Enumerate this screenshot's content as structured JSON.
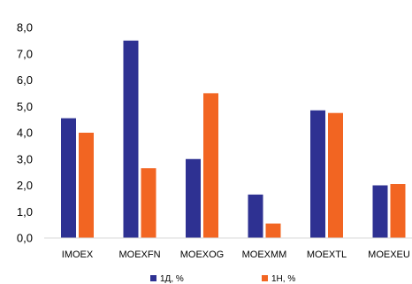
{
  "chart_data": {
    "type": "bar",
    "categories": [
      "IMOEX",
      "MOEXFN",
      "MOEXOG",
      "MOEXMM",
      "MOEXTL",
      "MOEXEU"
    ],
    "series": [
      {
        "name": "1Д, %",
        "color": "#2E3192",
        "values": [
          4.55,
          7.5,
          3.0,
          1.65,
          4.85,
          2.0
        ]
      },
      {
        "name": "1Н, %",
        "color": "#F26522",
        "values": [
          4.0,
          2.65,
          5.5,
          0.55,
          4.75,
          2.05
        ]
      }
    ],
    "yticks": [
      "0,0",
      "1,0",
      "2,0",
      "3,0",
      "4,0",
      "5,0",
      "6,0",
      "7,0",
      "8,0"
    ],
    "ylim": [
      0,
      8
    ],
    "grid": false,
    "legend_position": "bottom-center"
  }
}
